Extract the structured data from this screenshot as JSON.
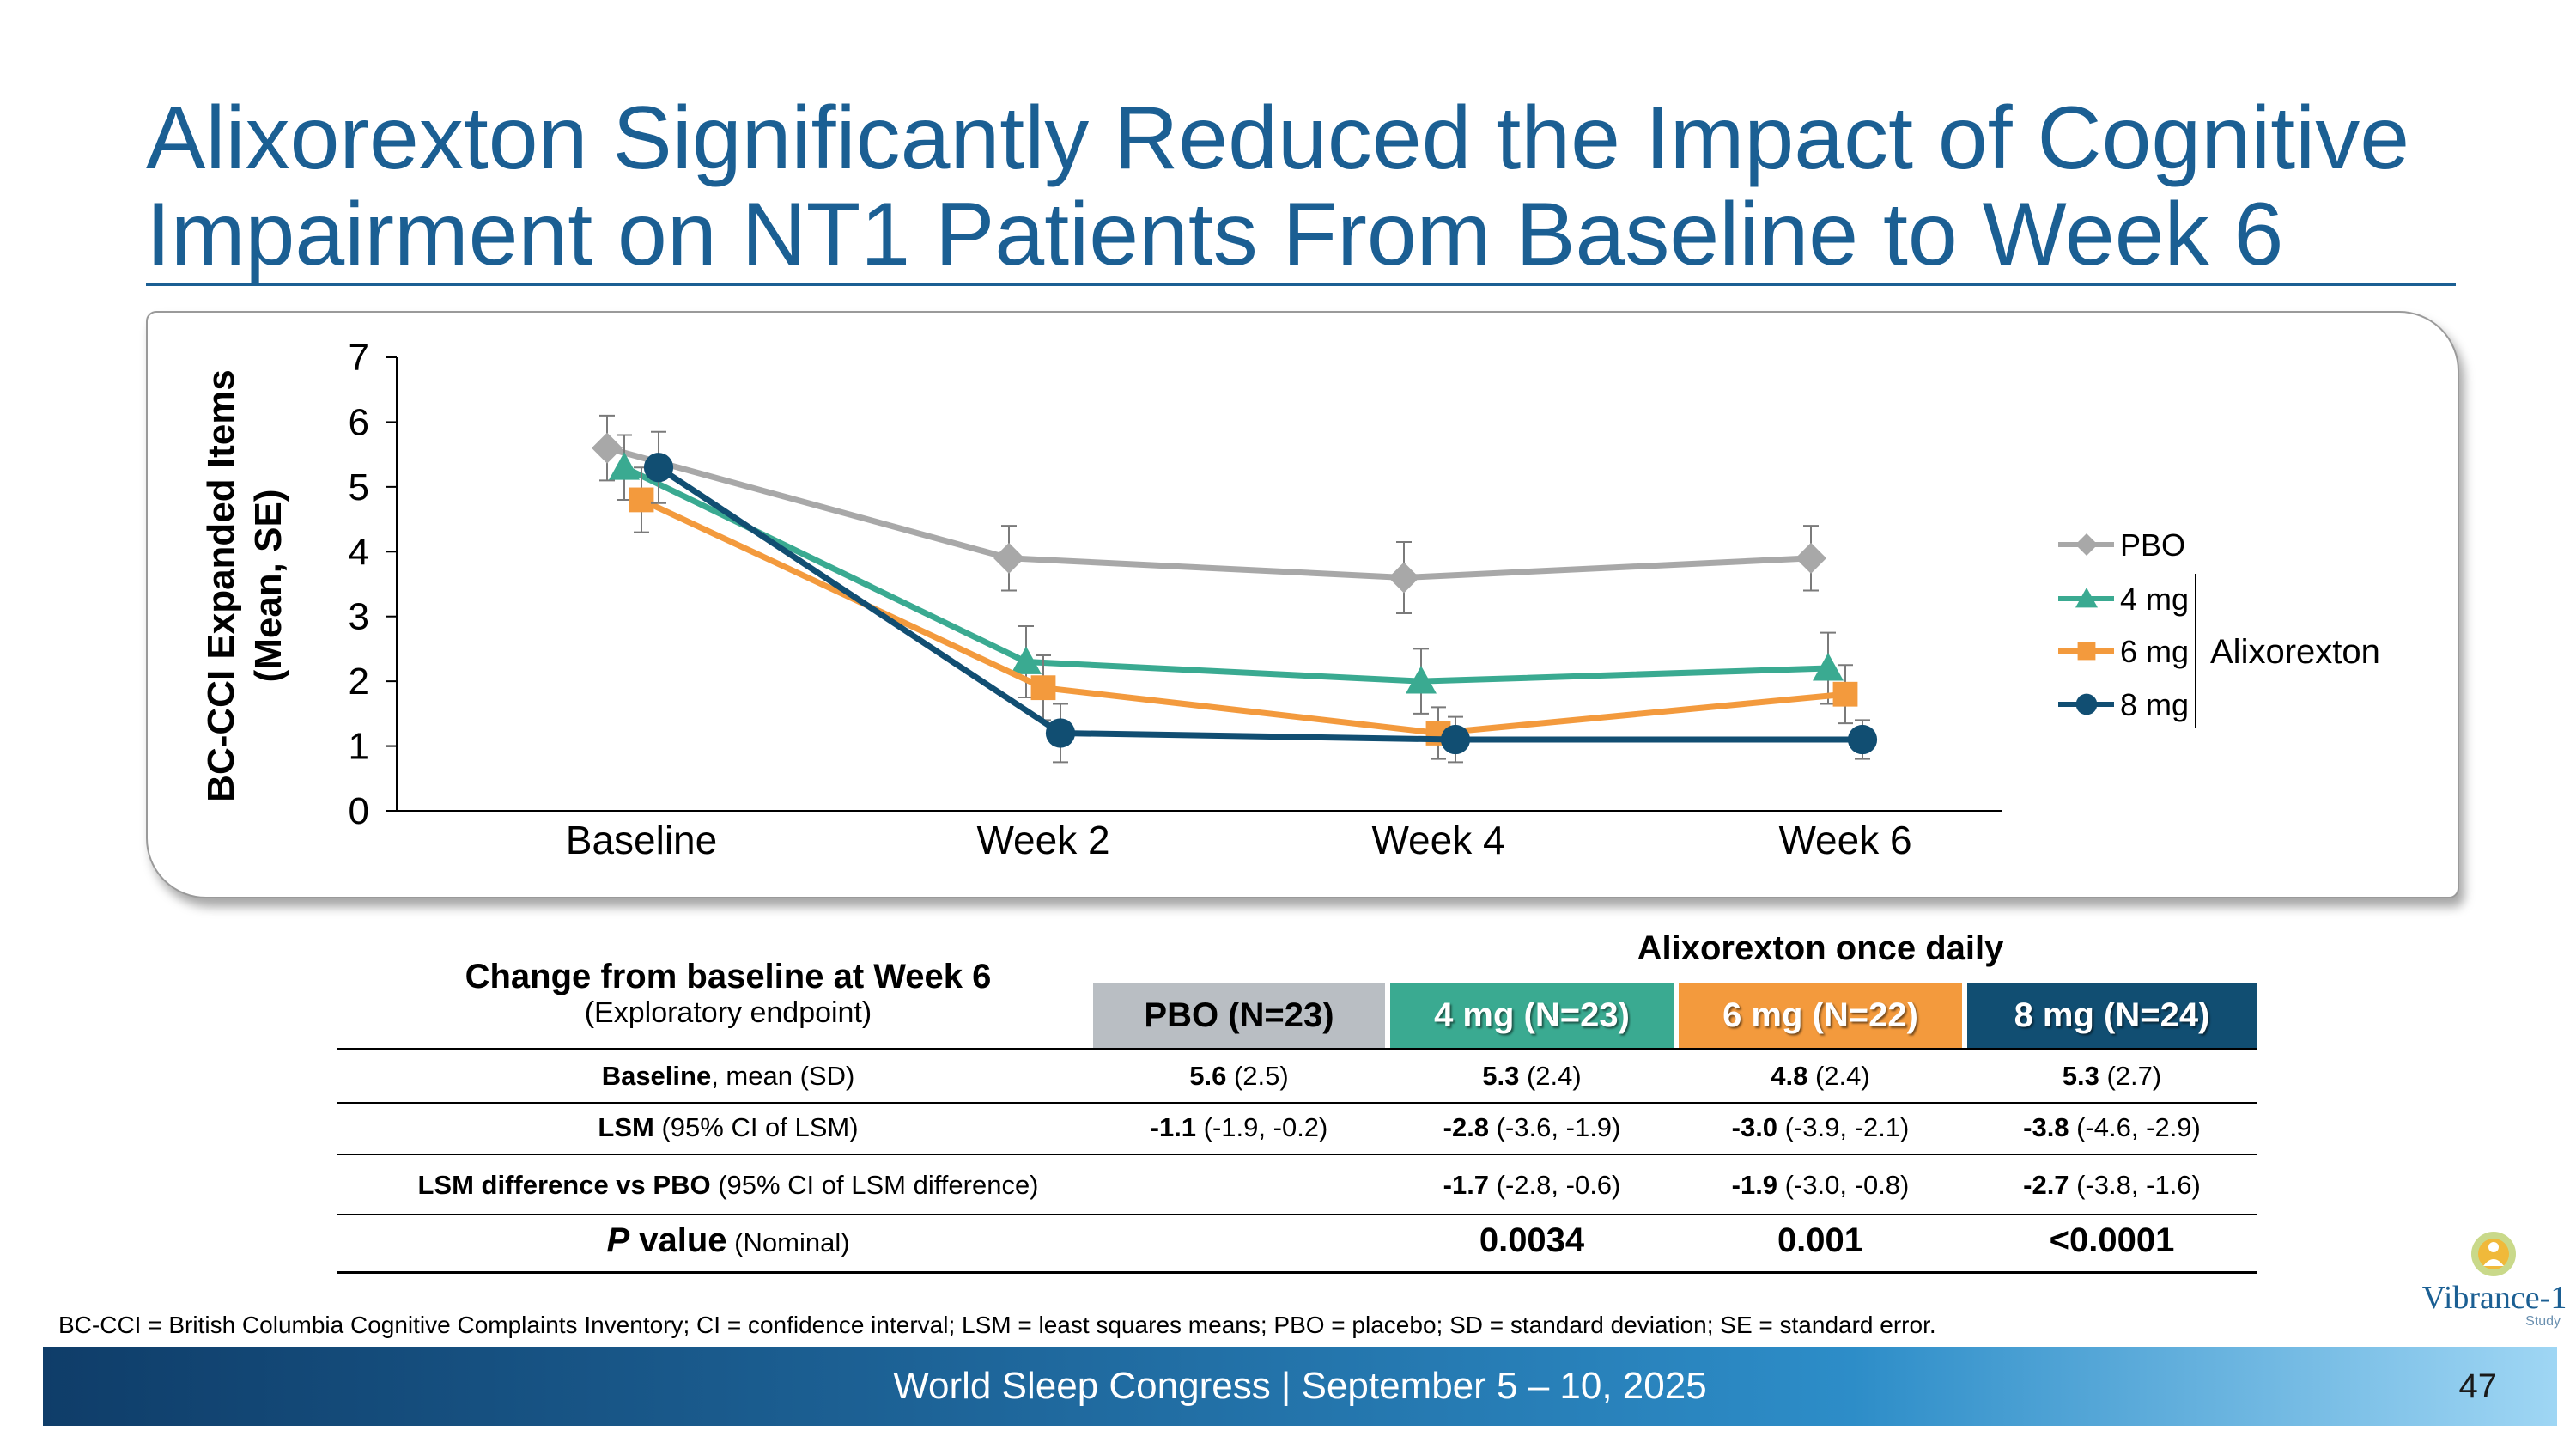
{
  "title": "Alixorexton Significantly Reduced the Impact of Cognitive Impairment on NT1 Patients From Baseline to Week 6",
  "chart_data": {
    "type": "line",
    "ylabel": "BC-CCI Expanded Items (Mean, SE)",
    "ylabel_line1": "BC-CCI Expanded Items",
    "ylabel_line2": "(Mean, SE)",
    "ylim": [
      0,
      7
    ],
    "yticks": [
      "0",
      "1",
      "2",
      "3",
      "4",
      "5",
      "6",
      "7"
    ],
    "categories": [
      "Baseline",
      "Week 2",
      "Week 4",
      "Week 6"
    ],
    "series": [
      {
        "name": "PBO",
        "color": "#a8a8a8",
        "marker": "diamond",
        "values": [
          5.6,
          3.9,
          3.6,
          3.9
        ],
        "se": [
          0.5,
          0.5,
          0.55,
          0.5
        ]
      },
      {
        "name": "4 mg",
        "color": "#3aaa91",
        "marker": "triangle",
        "values": [
          5.3,
          2.3,
          2.0,
          2.2
        ],
        "se": [
          0.5,
          0.55,
          0.5,
          0.55
        ]
      },
      {
        "name": "6 mg",
        "color": "#f39a3d",
        "marker": "square",
        "values": [
          4.8,
          1.9,
          1.2,
          1.8
        ],
        "se": [
          0.5,
          0.5,
          0.4,
          0.45
        ]
      },
      {
        "name": "8 mg",
        "color": "#114e72",
        "marker": "circle",
        "values": [
          5.3,
          1.2,
          1.1,
          1.1
        ],
        "se": [
          0.55,
          0.45,
          0.35,
          0.3
        ]
      }
    ],
    "legend_group_label": "Alixorexton",
    "legend_position": "right"
  },
  "table": {
    "group_header": "Alixorexton once daily",
    "row_header_title": "Change from baseline at Week 6",
    "row_header_sub": "(Exploratory endpoint)",
    "columns": [
      "PBO (N=23)",
      "4 mg (N=23)",
      "6 mg (N=22)",
      "8 mg (N=24)"
    ],
    "rows": [
      {
        "label_bold": "Baseline",
        "label_rest": ", mean (SD)",
        "cells": [
          {
            "b": "5.6",
            "r": " (2.5)"
          },
          {
            "b": "5.3",
            "r": " (2.4)"
          },
          {
            "b": "4.8",
            "r": " (2.4)"
          },
          {
            "b": "5.3",
            "r": " (2.7)"
          }
        ]
      },
      {
        "label_bold": "LSM",
        "label_rest": " (95% CI of LSM)",
        "cells": [
          {
            "b": "-1.1",
            "r": " (-1.9, -0.2)"
          },
          {
            "b": "-2.8",
            "r": " (-3.6, -1.9)"
          },
          {
            "b": "-3.0",
            "r": " (-3.9, -2.1)"
          },
          {
            "b": "-3.8",
            "r": " (-4.6, -2.9)"
          }
        ]
      },
      {
        "label_bold": "LSM difference vs PBO",
        "label_rest": " (95% CI of LSM difference)",
        "cells": [
          {
            "b": "",
            "r": ""
          },
          {
            "b": "-1.7",
            "r": " (-2.8, -0.6)"
          },
          {
            "b": "-1.9",
            "r": " (-3.0, -0.8)"
          },
          {
            "b": "-2.7",
            "r": " (-3.8, -1.6)"
          }
        ]
      }
    ],
    "pvalue": {
      "label_italic": "P",
      "label_bold": " value",
      "label_rest": " (Nominal)",
      "values": [
        "",
        "0.0034",
        "0.001",
        "<0.0001"
      ]
    }
  },
  "footnote": "BC-CCI = British Columbia Cognitive Complaints Inventory; CI = confidence interval; LSM = least squares means; PBO = placebo; SD = standard deviation; SE = standard error.",
  "footer": {
    "text": "World Sleep Congress | September 5 – 10, 2025",
    "page_number": "47"
  },
  "logo": {
    "word": "Vibrance-1",
    "sub": "Study"
  }
}
